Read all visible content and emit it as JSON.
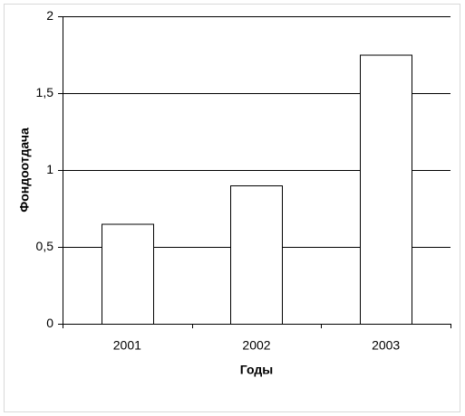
{
  "chart_data": {
    "type": "bar",
    "categories": [
      "2001",
      "2002",
      "2003"
    ],
    "values": [
      0.65,
      0.9,
      1.75
    ],
    "color": "#ffffff",
    "xlabel": "Годы",
    "ylabel": "Фондоотдача",
    "ylim": [
      0,
      2
    ],
    "yticks": [
      0,
      {
        "value": 0.5,
        "label": "0,5"
      },
      1,
      {
        "value": 1.5,
        "label": "1,5"
      },
      2
    ],
    "grid": true
  }
}
